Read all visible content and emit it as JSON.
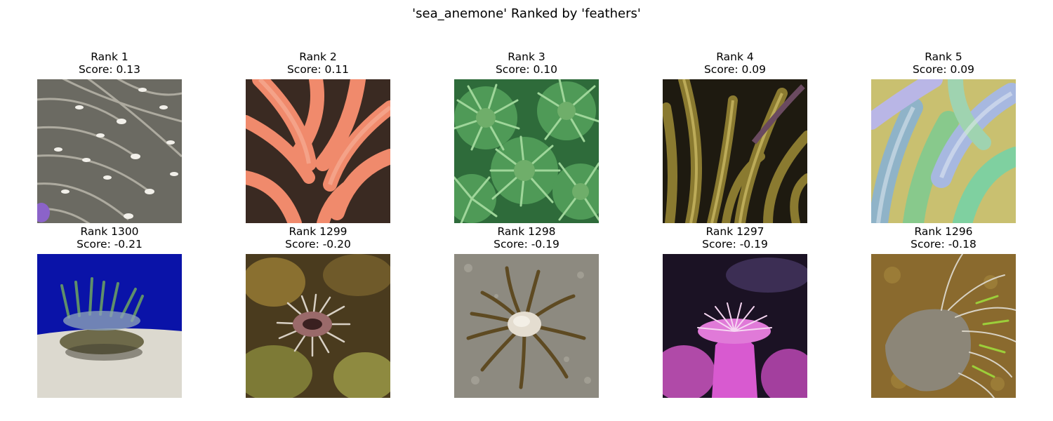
{
  "figure": {
    "title": "'sea_anemone' Ranked by 'feathers'"
  },
  "top_row": [
    {
      "rank": "Rank 1",
      "score": "Score: 0.13",
      "image": "white-tipped-tentacles-anemone-photo"
    },
    {
      "rank": "Rank 2",
      "score": "Score: 0.11",
      "image": "salmon-pink-tentacles-anemone-photo"
    },
    {
      "rank": "Rank 3",
      "score": "Score: 0.10",
      "image": "green-anemone-cluster-photo"
    },
    {
      "rank": "Rank 4",
      "score": "Score: 0.09",
      "image": "olive-brown-tentacles-anemone-photo"
    },
    {
      "rank": "Rank 5",
      "score": "Score: 0.09",
      "image": "pastel-green-lavender-tentacles-photo"
    }
  ],
  "bottom_row": [
    {
      "rank": "Rank 1300",
      "score": "Score: -0.21",
      "image": "anemone-on-sand-blue-background-photo"
    },
    {
      "rank": "Rank 1299",
      "score": "Score: -0.20",
      "image": "spiky-anemone-among-rocks-photo"
    },
    {
      "rank": "Rank 1298",
      "score": "Score: -0.19",
      "image": "brown-anemone-on-gravel-photo"
    },
    {
      "rank": "Rank 1297",
      "score": "Score: -0.19",
      "image": "magenta-anemone-dark-water-photo"
    },
    {
      "rank": "Rank 1296",
      "score": "Score: -0.18",
      "image": "translucent-anemone-on-sand-photo"
    }
  ]
}
